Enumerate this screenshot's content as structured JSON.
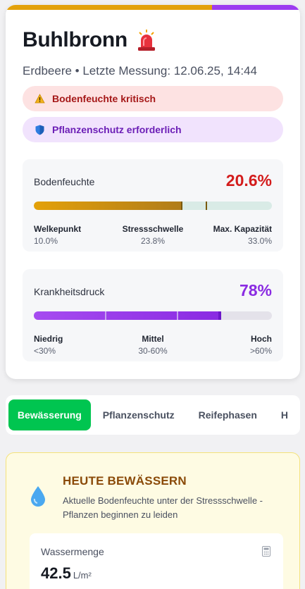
{
  "header": {
    "title": "Buhlbronn",
    "siren_icon": "siren-icon",
    "subtitle": "Erdbeere • Letzte Messung: 12.06.25, 14:44"
  },
  "alerts": [
    {
      "icon": "warning-icon",
      "label": "Bodenfeuchte kritisch"
    },
    {
      "icon": "shield-icon",
      "label": "Pflanzenschutz erforderlich"
    }
  ],
  "soil_moisture": {
    "label": "Bodenfeuchte",
    "value": "20.6%",
    "level": 20.6,
    "max": 33.0,
    "thresholds": [
      {
        "name": "Welkepunkt",
        "value": "10.0%"
      },
      {
        "name": "Stressschwelle",
        "value": "23.8%"
      },
      {
        "name": "Max. Kapazität",
        "value": "33.0%"
      }
    ]
  },
  "disease_pressure": {
    "label": "Krankheitsdruck",
    "value": "78%",
    "level": 78,
    "scale": [
      {
        "name": "Niedrig",
        "value": "<30%"
      },
      {
        "name": "Mittel",
        "value": "30-60%"
      },
      {
        "name": "Hoch",
        "value": ">60%"
      }
    ]
  },
  "tabs": [
    {
      "label": "Bewässerung",
      "active": true
    },
    {
      "label": "Pflanzenschutz",
      "active": false
    },
    {
      "label": "Reifephasen",
      "active": false
    },
    {
      "label": "H",
      "active": false
    }
  ],
  "irrigation": {
    "title": "HEUTE BEWÄSSERN",
    "text": "Aktuelle Bodenfeuchte unter der Stressschwelle - Pflanzen beginnen zu leiden",
    "amount_label": "Wassermenge",
    "amount_value": "42.5",
    "amount_unit": "L/m²"
  },
  "colors": {
    "accent_green": "#00c550",
    "warning_orange": "#e3a10a",
    "disease_purple": "#8a2be2",
    "critical_red": "#d31c1c"
  }
}
